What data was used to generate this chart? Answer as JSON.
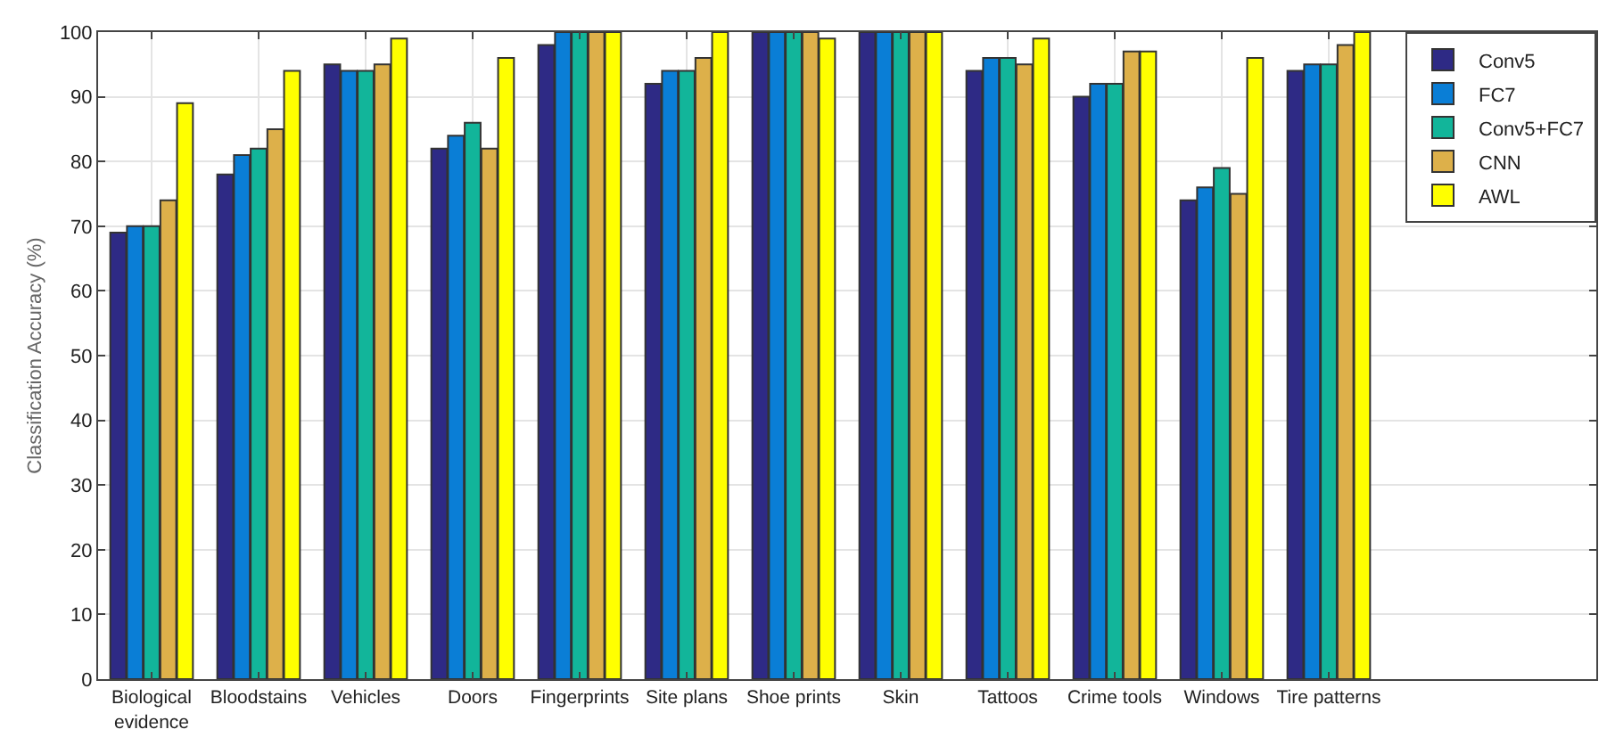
{
  "chart_data": {
    "type": "bar",
    "ylabel": "Classification Accuracy (%)",
    "categories": [
      "Biological evidence",
      "Bloodstains",
      "Vehicles",
      "Doors",
      "Fingerprints",
      "Site plans",
      "Shoe prints",
      "Skin",
      "Tattoos",
      "Crime tools",
      "Windows",
      "Tire patterns",
      null,
      null
    ],
    "series": [
      {
        "name": "Conv5",
        "color": "#2e2a85",
        "values": [
          69,
          78,
          95,
          82,
          98,
          92,
          100,
          100,
          94,
          90,
          74,
          94,
          null,
          null
        ]
      },
      {
        "name": "FC7",
        "color": "#0a7ed6",
        "values": [
          70,
          81,
          94,
          84,
          100,
          94,
          100,
          100,
          96,
          92,
          76,
          95,
          null,
          null
        ]
      },
      {
        "name": "Conv5+FC7",
        "color": "#12b59a",
        "values": [
          70,
          82,
          94,
          86,
          100,
          94,
          100,
          100,
          96,
          92,
          79,
          95,
          null,
          null
        ]
      },
      {
        "name": "CNN",
        "color": "#ddb04a",
        "values": [
          74,
          85,
          95,
          82,
          100,
          96,
          100,
          100,
          95,
          97,
          75,
          98,
          null,
          null
        ]
      },
      {
        "name": "AWL",
        "color": "#ffff00",
        "values": [
          89,
          94,
          99,
          96,
          100,
          100,
          99,
          100,
          99,
          97,
          96,
          100,
          null,
          null
        ]
      }
    ],
    "ylim": [
      0,
      100
    ],
    "yticks": [
      0,
      10,
      20,
      30,
      40,
      50,
      60,
      70,
      80,
      90,
      100
    ],
    "grid": true,
    "legend": "top right"
  }
}
